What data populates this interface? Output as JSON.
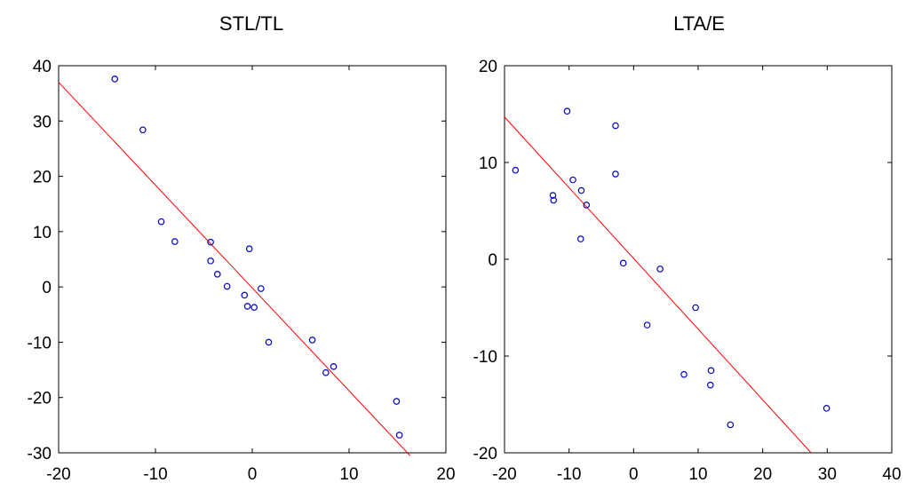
{
  "chart_data": [
    {
      "type": "scatter",
      "title": "STL/TL",
      "xlabel": "",
      "ylabel": "",
      "xlim": [
        -20,
        20
      ],
      "ylim": [
        -30,
        40
      ],
      "xticks": [
        -20,
        -10,
        0,
        10,
        20
      ],
      "yticks": [
        -30,
        -20,
        -10,
        0,
        10,
        20,
        30,
        40
      ],
      "grid": false,
      "point_color": "#0000cc",
      "line_color": "#ff0000",
      "fit_line": {
        "x": [
          -20,
          16.3
        ],
        "y": [
          37,
          -30.5
        ]
      },
      "points": [
        {
          "x": -14.2,
          "y": 37.6
        },
        {
          "x": -11.3,
          "y": 28.4
        },
        {
          "x": -9.4,
          "y": 11.8
        },
        {
          "x": -8.0,
          "y": 8.2
        },
        {
          "x": -4.3,
          "y": 8.1
        },
        {
          "x": -4.3,
          "y": 4.7
        },
        {
          "x": -3.6,
          "y": 2.3
        },
        {
          "x": -2.6,
          "y": 0.1
        },
        {
          "x": -0.8,
          "y": -1.5
        },
        {
          "x": -0.3,
          "y": 6.9
        },
        {
          "x": -0.5,
          "y": -3.5
        },
        {
          "x": 0.2,
          "y": -3.7
        },
        {
          "x": 0.9,
          "y": -0.3
        },
        {
          "x": 1.7,
          "y": -10.0
        },
        {
          "x": 6.2,
          "y": -9.6
        },
        {
          "x": 7.6,
          "y": -15.5
        },
        {
          "x": 8.4,
          "y": -14.4
        },
        {
          "x": 14.9,
          "y": -20.7
        },
        {
          "x": 15.2,
          "y": -26.8
        }
      ]
    },
    {
      "type": "scatter",
      "title": "LTA/E",
      "xlabel": "",
      "ylabel": "",
      "xlim": [
        -20,
        40
      ],
      "ylim": [
        -20,
        20
      ],
      "xticks": [
        -20,
        -10,
        0,
        10,
        20,
        30,
        40
      ],
      "yticks": [
        -20,
        -10,
        0,
        10,
        20
      ],
      "grid": false,
      "point_color": "#0000cc",
      "line_color": "#ff0000",
      "fit_line": {
        "x": [
          -20,
          27.5
        ],
        "y": [
          14.7,
          -20
        ]
      },
      "points": [
        {
          "x": -18.3,
          "y": 9.2
        },
        {
          "x": -12.5,
          "y": 6.6
        },
        {
          "x": -12.4,
          "y": 6.1
        },
        {
          "x": -10.3,
          "y": 15.3
        },
        {
          "x": -9.4,
          "y": 8.2
        },
        {
          "x": -8.1,
          "y": 7.1
        },
        {
          "x": -7.3,
          "y": 5.6
        },
        {
          "x": -8.2,
          "y": 2.1
        },
        {
          "x": -2.8,
          "y": 13.8
        },
        {
          "x": -2.8,
          "y": 8.8
        },
        {
          "x": -1.6,
          "y": -0.4
        },
        {
          "x": 2.1,
          "y": -6.8
        },
        {
          "x": 4.1,
          "y": -1.0
        },
        {
          "x": 7.8,
          "y": -11.9
        },
        {
          "x": 9.6,
          "y": -5.0
        },
        {
          "x": 12.0,
          "y": -11.5
        },
        {
          "x": 11.9,
          "y": -13.0
        },
        {
          "x": 15.0,
          "y": -17.1
        },
        {
          "x": 29.9,
          "y": -15.4
        }
      ]
    }
  ]
}
